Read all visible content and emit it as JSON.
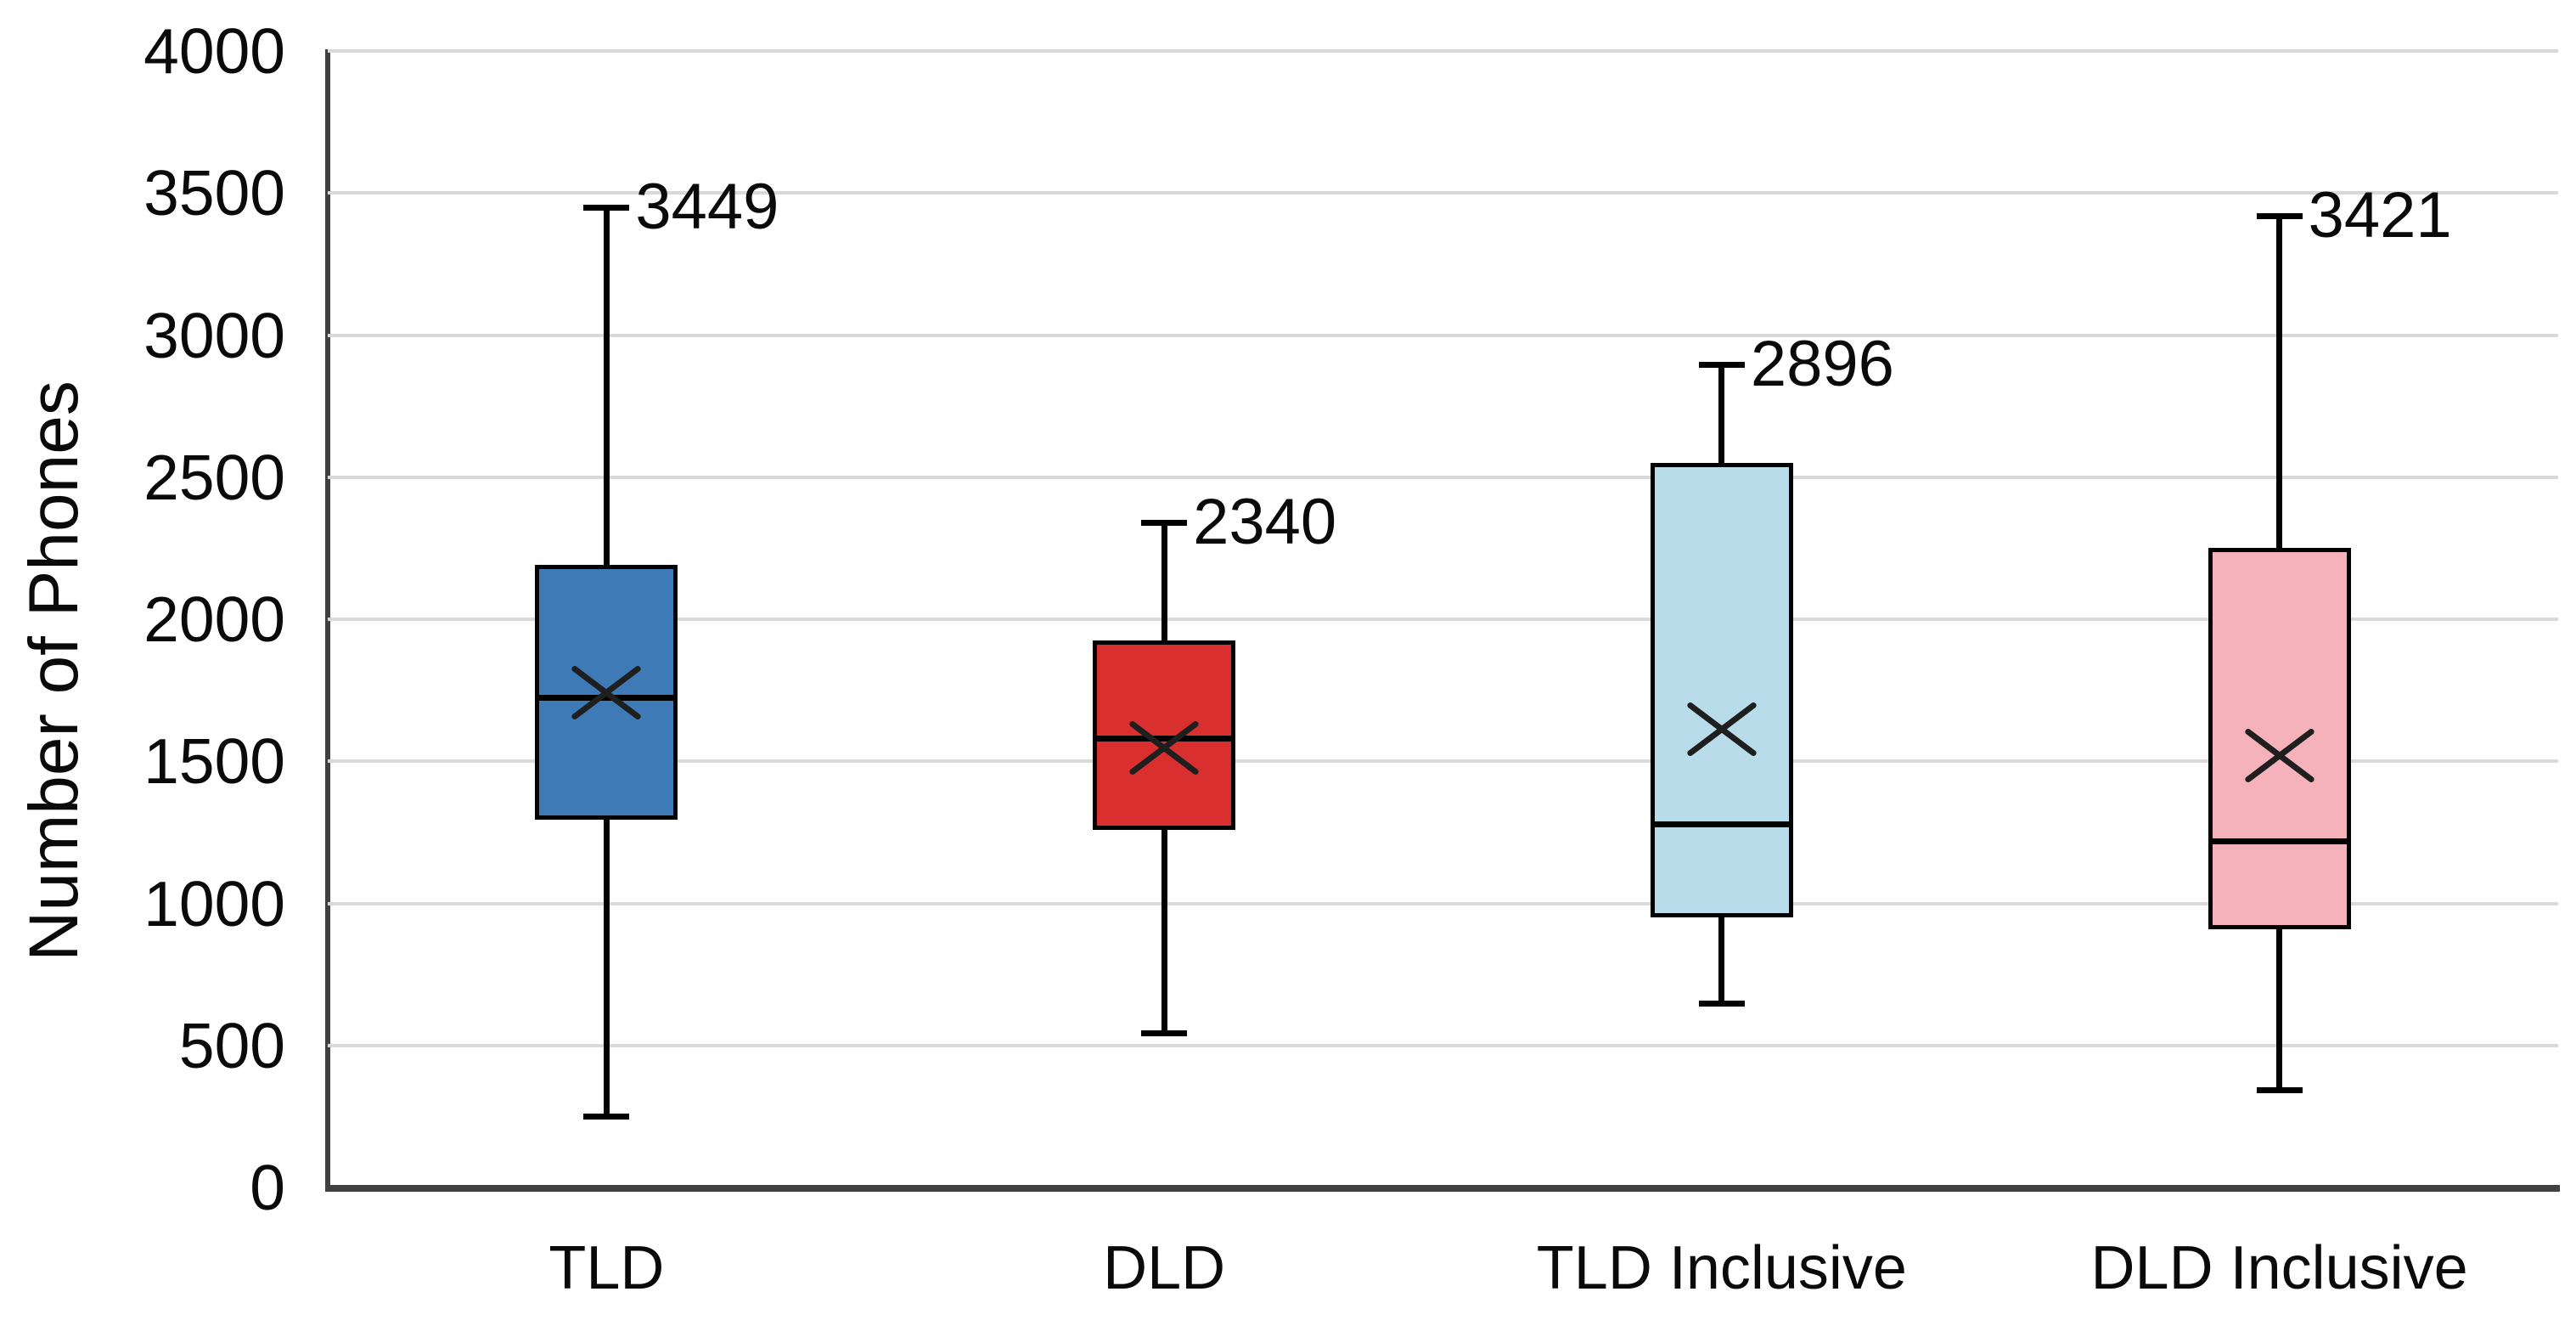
{
  "chart_data": {
    "type": "boxplot",
    "title": "",
    "ylabel": "Number of Phones",
    "xlabel": "",
    "ylim": [
      0,
      4000
    ],
    "ytick_interval": 500,
    "yticks": [
      "0",
      "500",
      "1000",
      "1500",
      "2000",
      "2500",
      "3000",
      "3500",
      "4000"
    ],
    "grid": "horizontal-gridlines",
    "legend": "none",
    "categories": [
      "TLD",
      "DLD",
      "TLD Inclusive",
      "DLD Inclusive"
    ],
    "series": [
      {
        "name": "TLD",
        "whisker_low": 250,
        "q1": 1295,
        "median": 1725,
        "mean": 1740,
        "q3": 2190,
        "whisker_high": 3449,
        "max_label": "3449",
        "fill_color": "#3e7bb6"
      },
      {
        "name": "DLD",
        "whisker_low": 545,
        "q1": 1260,
        "median": 1580,
        "mean": 1545,
        "q3": 1925,
        "whisker_high": 2340,
        "max_label": "2340",
        "fill_color": "#d92f2e"
      },
      {
        "name": "TLD Inclusive",
        "whisker_low": 650,
        "q1": 950,
        "median": 1280,
        "mean": 1610,
        "q3": 2550,
        "whisker_high": 2896,
        "max_label": "2896",
        "fill_color": "#b9dcea"
      },
      {
        "name": "DLD Inclusive",
        "whisker_low": 345,
        "q1": 910,
        "median": 1220,
        "mean": 1520,
        "q3": 2250,
        "whisker_high": 3421,
        "max_label": "3421",
        "fill_color": "#f5b2ba"
      }
    ],
    "colors": {
      "gridline": "#d9d9d9",
      "axis": "#404040",
      "box_border": "#000000",
      "whisker": "#000000",
      "median": "#000000",
      "mean_marker": "#1f1f1f",
      "text": "#0a0a0a",
      "background": "#ffffff"
    }
  }
}
